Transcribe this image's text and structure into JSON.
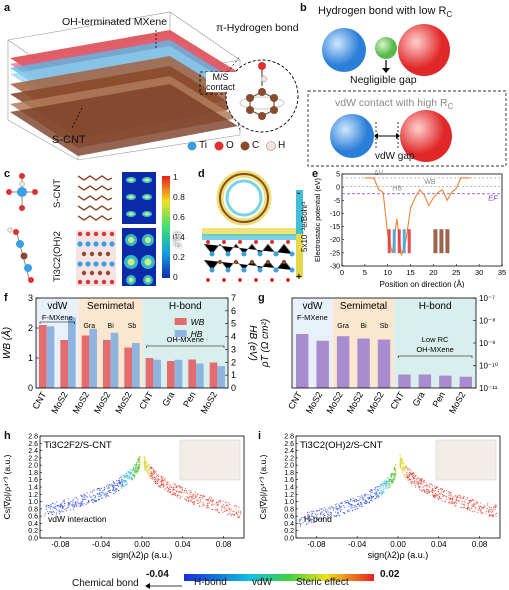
{
  "panel_letters": [
    "a",
    "b",
    "c",
    "d",
    "e",
    "f",
    "g",
    "h",
    "i"
  ],
  "panel_a": {
    "mxene_label": "OH-terminated MXene",
    "contact_label_line1": "M/S",
    "contact_label_line2": "contact",
    "pi_label": "π-Hydrogen bond",
    "cnt_label": "S-CNT",
    "legend": [
      "Ti",
      "O",
      "C",
      "H"
    ],
    "legend_colors": [
      "#3aa0e0",
      "#e03030",
      "#8b4a2b",
      "#f4e4dc"
    ]
  },
  "panel_b": {
    "title": "Hydrogen bond with low R",
    "title_sub": "C",
    "gap_label": "Negligible gap",
    "vdw_title": "vdW contact with high R",
    "vdw_title_sub": "C",
    "vdw_gap": "vdW gap"
  },
  "panel_c": {
    "row1": "S-CNT",
    "row2": "Ti3C2(OH)2",
    "colorbar_ticks": [
      "1",
      "0.8",
      "0.6",
      "0.4",
      "0.2",
      "0"
    ],
    "colorbar_label": "ELF"
  },
  "panel_d": {
    "scale_label": "5x10⁻³e/Bohr³",
    "plus": "+",
    "minus": "-"
  },
  "panel_e": {
    "ylabel": "Electrostatic potential (eV)",
    "xlabel": "Position on direction (Å)",
    "annotations": [
      "ΔV",
      "WB",
      "HB",
      "EF"
    ],
    "chart_data": {
      "type": "line",
      "xlim": [
        0,
        35
      ],
      "ylim": [
        -30,
        5
      ],
      "x_ticks": [
        0,
        5,
        10,
        15,
        20,
        25,
        30,
        35
      ],
      "y_ticks": [
        5,
        0,
        -5,
        -10,
        -15,
        -20,
        -25,
        -30
      ],
      "series": [
        {
          "x": [
            5,
            6,
            7,
            8,
            9,
            10,
            11,
            12,
            13,
            14,
            15,
            16,
            17,
            18,
            19,
            20,
            21,
            22,
            23,
            24,
            25,
            26,
            27,
            28
          ],
          "y": [
            3.5,
            3.5,
            3.4,
            -1,
            -2,
            -18,
            -25,
            -12,
            -26,
            -20,
            -8,
            -4,
            -1,
            -3,
            -7,
            -4,
            -2,
            -1,
            -5,
            -2,
            -0.5,
            3.5,
            3.5,
            3.5
          ]
        }
      ]
    }
  },
  "panel_f": {
    "ylabel_left": "W",
    "ylabel_left_sub": "B",
    "ylabel_left_unit": " (Å)",
    "ylabel_right": "H",
    "ylabel_right_sub": "B",
    "ylabel_right_unit": " (eV)",
    "regions": [
      "vdW",
      "Semimetal",
      "H-bond"
    ],
    "region_colors": [
      "#e8f1fa",
      "#fbe7cf",
      "#d9efee"
    ],
    "annot1": "F-MXene",
    "annot2": "OH-MXene",
    "sub_labels": [
      "Gra",
      "Bi",
      "Sb"
    ],
    "legend": [
      "W",
      "H"
    ],
    "legend_sub": [
      "B",
      "B"
    ],
    "colors": {
      "wb": "#e46c6f",
      "hb": "#8fb4e0"
    },
    "chart_data": {
      "type": "bar",
      "categories": [
        "CNT",
        "MoS2",
        "MoS2",
        "MoS2",
        "MoS2",
        "CNT",
        "Gra",
        "Pen",
        "MoS2"
      ],
      "y_left_lim": [
        0,
        3
      ],
      "y_right_lim": [
        0,
        7
      ],
      "y_left_ticks": [
        0,
        1,
        2,
        3
      ],
      "y_right_ticks": [
        0,
        1,
        2,
        3,
        4,
        5,
        6,
        7
      ],
      "series": [
        {
          "name": "WB",
          "values": [
            2.1,
            1.6,
            1.75,
            1.6,
            1.35,
            1.0,
            0.9,
            0.95,
            0.85
          ]
        },
        {
          "name": "HB",
          "values": [
            4.8,
            5.5,
            4.6,
            4.3,
            3.5,
            2.2,
            2.2,
            1.9,
            1.7
          ]
        }
      ]
    }
  },
  "panel_g": {
    "ylabel": "ρT (Ω cm²)",
    "regions": [
      "vdW",
      "Semimetal",
      "H-bond"
    ],
    "annot1": "F-MXene",
    "annot2_line1": "Low R",
    "annot2_sub": "C",
    "annot2_line2": "OH-MXene",
    "sub_labels": [
      "Gra",
      "Bi",
      "Sb"
    ],
    "bar_color": "#a98bcf",
    "chart_data": {
      "type": "bar",
      "categories": [
        "CNT",
        "MoS2",
        "MoS2",
        "MoS2",
        "MoS2",
        "CNT",
        "Gra",
        "Pen",
        "MoS2"
      ],
      "y_scale": "log",
      "ylim": [
        1e-11,
        1e-07
      ],
      "y_tick_labels": [
        "10⁻⁷",
        "10⁻⁸",
        "10⁻⁹",
        "10⁻¹⁰",
        "10⁻¹¹"
      ],
      "values_log10": [
        -8.6,
        -8.9,
        -8.7,
        -8.8,
        -8.85,
        -10.4,
        -10.4,
        -10.45,
        -10.5
      ]
    }
  },
  "panel_h": {
    "title": "Ti3C2F2/S-CNT",
    "annotation": "vdW interaction",
    "ylabel": "Cs|∇ρ|/ρ⁴ᐟ³ (a.u.)",
    "xlabel": "sign(λ2)ρ (a.u.)",
    "chart_data": {
      "type": "scatter",
      "xlim": [
        -0.1,
        0.1
      ],
      "ylim": [
        0,
        2.8
      ],
      "x_ticks": [
        "-0.08",
        "-0.04",
        "0.00",
        "0.04",
        "0.08"
      ],
      "y_ticks": [
        "0.0",
        "0.2",
        "0.4",
        "0.6",
        "0.8",
        "1.0",
        "1.2",
        "1.4",
        "1.6",
        "1.8",
        "2.0",
        "2.2",
        "2.4",
        "2.6",
        "2.8"
      ]
    }
  },
  "panel_i": {
    "title": "Ti3C2(OH)2/S-CNT",
    "annotation": "H-bond",
    "ylabel": "Cs|∇ρ|/ρ⁴ᐟ³ (a.u.)",
    "xlabel": "sign(λ2)ρ (a.u.)",
    "chart_data": {
      "type": "scatter",
      "xlim": [
        -0.1,
        0.1
      ],
      "ylim": [
        0,
        2.8
      ],
      "x_ticks": [
        "-0.08",
        "-0.04",
        "0.00",
        "0.04",
        "0.08"
      ],
      "y_ticks": [
        "0.0",
        "0.2",
        "0.4",
        "0.6",
        "0.8",
        "1.0",
        "1.2",
        "1.4",
        "1.6",
        "1.8",
        "2.0",
        "2.2",
        "2.4",
        "2.6",
        "2.8"
      ]
    }
  },
  "colorbar_bottom": {
    "min": "-0.04",
    "max": "0.02",
    "labels": [
      "H-bond",
      "vdW",
      "Steric effect"
    ],
    "chem": "Chemical bond"
  }
}
